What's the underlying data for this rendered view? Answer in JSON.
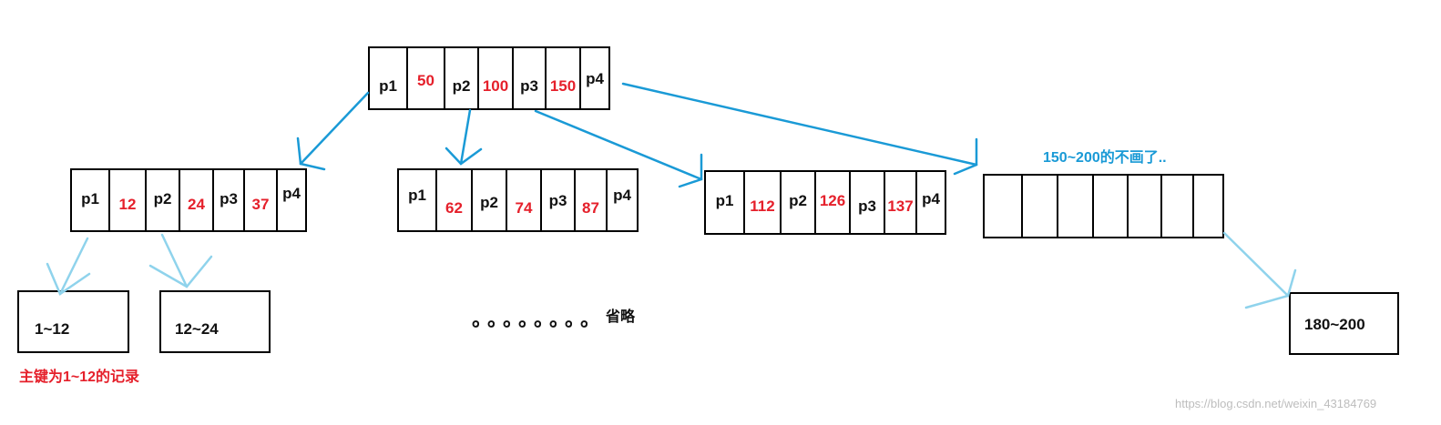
{
  "root_node": {
    "cells": [
      {
        "text": "p1",
        "kind": "ptr"
      },
      {
        "text": "50",
        "kind": "key"
      },
      {
        "text": "p2",
        "kind": "ptr"
      },
      {
        "text": "100",
        "kind": "key"
      },
      {
        "text": "p3",
        "kind": "ptr"
      },
      {
        "text": "150",
        "kind": "key"
      },
      {
        "text": "p4",
        "kind": "ptr"
      }
    ]
  },
  "child_nodes": [
    {
      "cells": [
        {
          "text": "p1",
          "kind": "ptr"
        },
        {
          "text": "12",
          "kind": "key"
        },
        {
          "text": "p2",
          "kind": "ptr"
        },
        {
          "text": "24",
          "kind": "key"
        },
        {
          "text": "p3",
          "kind": "ptr"
        },
        {
          "text": "37",
          "kind": "key"
        },
        {
          "text": "p4",
          "kind": "ptr"
        }
      ]
    },
    {
      "cells": [
        {
          "text": "p1",
          "kind": "ptr"
        },
        {
          "text": "62",
          "kind": "key"
        },
        {
          "text": "p2",
          "kind": "ptr"
        },
        {
          "text": "74",
          "kind": "key"
        },
        {
          "text": "p3",
          "kind": "ptr"
        },
        {
          "text": "87",
          "kind": "key"
        },
        {
          "text": "p4",
          "kind": "ptr"
        }
      ]
    },
    {
      "cells": [
        {
          "text": "p1",
          "kind": "ptr"
        },
        {
          "text": "112",
          "kind": "key"
        },
        {
          "text": "p2",
          "kind": "ptr"
        },
        {
          "text": "126",
          "kind": "key"
        },
        {
          "text": "p3",
          "kind": "ptr"
        },
        {
          "text": "137",
          "kind": "key"
        },
        {
          "text": "p4",
          "kind": "ptr"
        }
      ]
    },
    {
      "cells": [
        {
          "text": "",
          "kind": "empty"
        },
        {
          "text": "",
          "kind": "empty"
        },
        {
          "text": "",
          "kind": "empty"
        },
        {
          "text": "",
          "kind": "empty"
        },
        {
          "text": "",
          "kind": "empty"
        },
        {
          "text": "",
          "kind": "empty"
        },
        {
          "text": "",
          "kind": "empty"
        }
      ]
    }
  ],
  "leaf_nodes": [
    {
      "text": "1~12"
    },
    {
      "text": "12~24"
    },
    {
      "text": "180~200"
    }
  ],
  "notes": {
    "leaf_caption": "主键为1~12的记录",
    "right_caption": "150~200的不画了..",
    "omitted_dots": "。。。。。。。。",
    "omitted_label": "省略"
  },
  "watermark": "https://blog.csdn.net/weixin_43184769",
  "colors": {
    "pointer_text": "#111111",
    "key_text": "#e5202b",
    "arrow_primary": "#1a9ad6",
    "arrow_secondary": "#8fd3ec"
  }
}
